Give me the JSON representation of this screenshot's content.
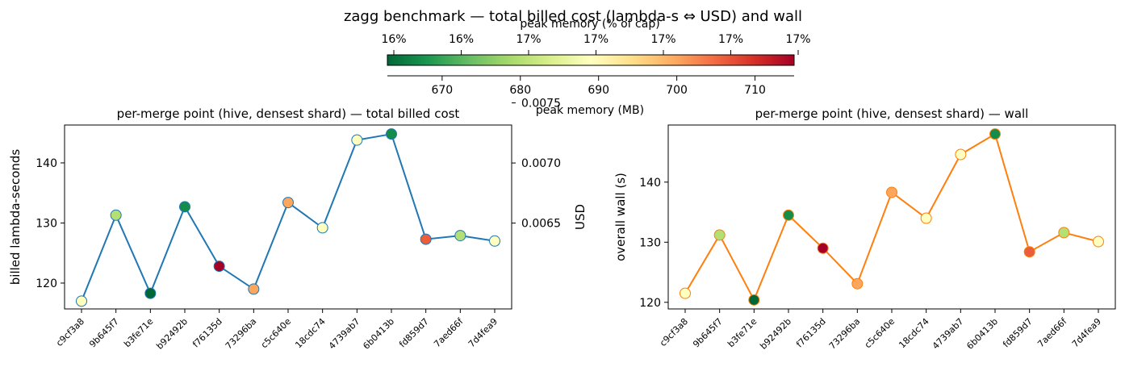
{
  "figure": {
    "title": "zagg benchmark — total billed cost (lambda-s ⇔ USD) and wall"
  },
  "colorbar": {
    "label": "peak memory (MB)",
    "top_label": "peak memory (% of cap)",
    "ticks": [
      "670",
      "680",
      "690",
      "700",
      "710"
    ],
    "top_ticks": [
      "16%",
      "16%",
      "17%",
      "17%",
      "17%",
      "17%",
      "17%"
    ],
    "range": [
      663,
      715
    ],
    "colormap": "RdYlGn_r"
  },
  "chart_data": [
    {
      "type": "line",
      "title": "per-merge point (hive, densest shard) — total billed cost",
      "xlabel": "",
      "ylabel": "billed lambda-seconds",
      "ylabel2": "USD",
      "categories": [
        "c9cf3a8",
        "9b645f7",
        "b3fe71e",
        "b92492b",
        "f76135d",
        "73296ba",
        "c5c640e",
        "18cdc74",
        "4739ab7",
        "6b0413b",
        "fd859d7",
        "7aed66f",
        "7d4fea9"
      ],
      "series": [
        {
          "values": [
            117.0,
            131.3,
            118.3,
            132.7,
            122.8,
            119.0,
            133.4,
            129.2,
            143.8,
            144.8,
            127.3,
            127.9,
            127.0
          ],
          "color": "#1f77b4",
          "peak_memory_mb": [
            689,
            680,
            663,
            667,
            715,
            700,
            700,
            689,
            689,
            667,
            706,
            680,
            689
          ]
        }
      ],
      "ylim": [
        115.7,
        146.3
      ],
      "yticks": [
        "120",
        "130",
        "140"
      ],
      "y2ticks": [
        "0.0065",
        "0.0070",
        "0.0075"
      ],
      "y2_values": [
        0.0065,
        0.007,
        0.0075
      ],
      "y2_map": {
        "a": 5e-05,
        "b": 9e-07
      }
    },
    {
      "type": "line",
      "title": "per-merge point (hive, densest shard) — wall",
      "xlabel": "",
      "ylabel": "overall wall (s)",
      "categories": [
        "c9cf3a8",
        "9b645f7",
        "b3fe71e",
        "b92492b",
        "f76135d",
        "73296ba",
        "c5c640e",
        "18cdc74",
        "4739ab7",
        "6b0413b",
        "fd859d7",
        "7aed66f",
        "7d4fea9"
      ],
      "series": [
        {
          "values": [
            121.5,
            131.2,
            120.4,
            134.5,
            129.0,
            123.1,
            138.3,
            134.0,
            144.6,
            148.0,
            128.4,
            131.6,
            130.1
          ],
          "color": "#ff7f0e",
          "peak_memory_mb": [
            689,
            680,
            663,
            667,
            715,
            700,
            700,
            689,
            689,
            667,
            706,
            680,
            689
          ]
        }
      ],
      "ylim": [
        118.9,
        149.5
      ],
      "yticks": [
        "120",
        "130",
        "140"
      ]
    }
  ]
}
